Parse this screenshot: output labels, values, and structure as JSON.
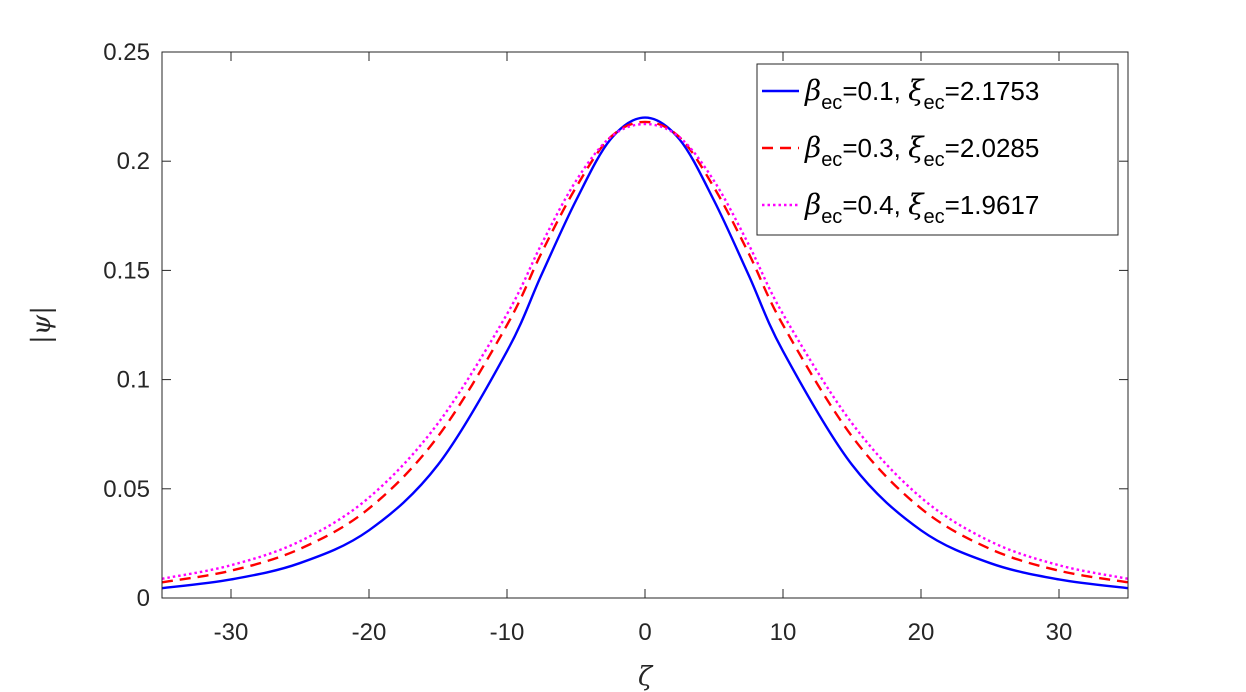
{
  "chart_data": {
    "type": "line",
    "xlabel": "ζ",
    "ylabel": "|ψ|",
    "xlim": [
      -35,
      35
    ],
    "ylim": [
      0,
      0.25
    ],
    "xticks": [
      -30,
      -20,
      -10,
      0,
      10,
      20,
      30
    ],
    "xtick_labels": [
      "-30",
      "-20",
      "-10",
      "0",
      "10",
      "20",
      "30"
    ],
    "yticks": [
      0,
      0.05,
      0.1,
      0.15,
      0.2,
      0.25
    ],
    "ytick_labels": [
      "0",
      "0.05",
      "0.1",
      "0.15",
      "0.2",
      "0.25"
    ],
    "grid": false,
    "legend_position": "top-right",
    "x": [
      -35,
      -30,
      -25,
      -20,
      -15,
      -10,
      -7.5,
      -5,
      -2.5,
      0,
      2.5,
      5,
      7.5,
      10,
      15,
      20,
      25,
      30,
      35
    ],
    "series": [
      {
        "legend": {
          "beta_sym": "β",
          "beta_sub": "ec",
          "beta_val": "=0.1, ",
          "xi_sym": "ξ",
          "xi_sub": "ec",
          "xi_val": "=2.1753"
        },
        "color": "#0000ff",
        "style": "solid",
        "values": [
          0.0045,
          0.0085,
          0.016,
          0.031,
          0.061,
          0.113,
          0.148,
          0.182,
          0.21,
          0.22,
          0.21,
          0.182,
          0.148,
          0.113,
          0.061,
          0.031,
          0.016,
          0.0085,
          0.0045
        ]
      },
      {
        "legend": {
          "beta_sym": "β",
          "beta_sub": "ec",
          "beta_val": "=0.3, ",
          "xi_sym": "ξ",
          "xi_sub": "ec",
          "xi_val": "=2.0285"
        },
        "color": "#ff0000",
        "style": "dashed",
        "values": [
          0.0072,
          0.0125,
          0.0225,
          0.041,
          0.074,
          0.125,
          0.158,
          0.188,
          0.211,
          0.218,
          0.211,
          0.188,
          0.158,
          0.125,
          0.074,
          0.041,
          0.0225,
          0.0125,
          0.0072
        ]
      },
      {
        "legend": {
          "beta_sym": "β",
          "beta_sub": "ec",
          "beta_val": "=0.4, ",
          "xi_sym": "ξ",
          "xi_sub": "ec",
          "xi_val": "=1.9617"
        },
        "color": "#ff00ff",
        "style": "dotted",
        "values": [
          0.0088,
          0.015,
          0.026,
          0.046,
          0.08,
          0.13,
          0.162,
          0.191,
          0.211,
          0.217,
          0.211,
          0.191,
          0.162,
          0.13,
          0.08,
          0.046,
          0.026,
          0.015,
          0.0088
        ]
      }
    ]
  }
}
